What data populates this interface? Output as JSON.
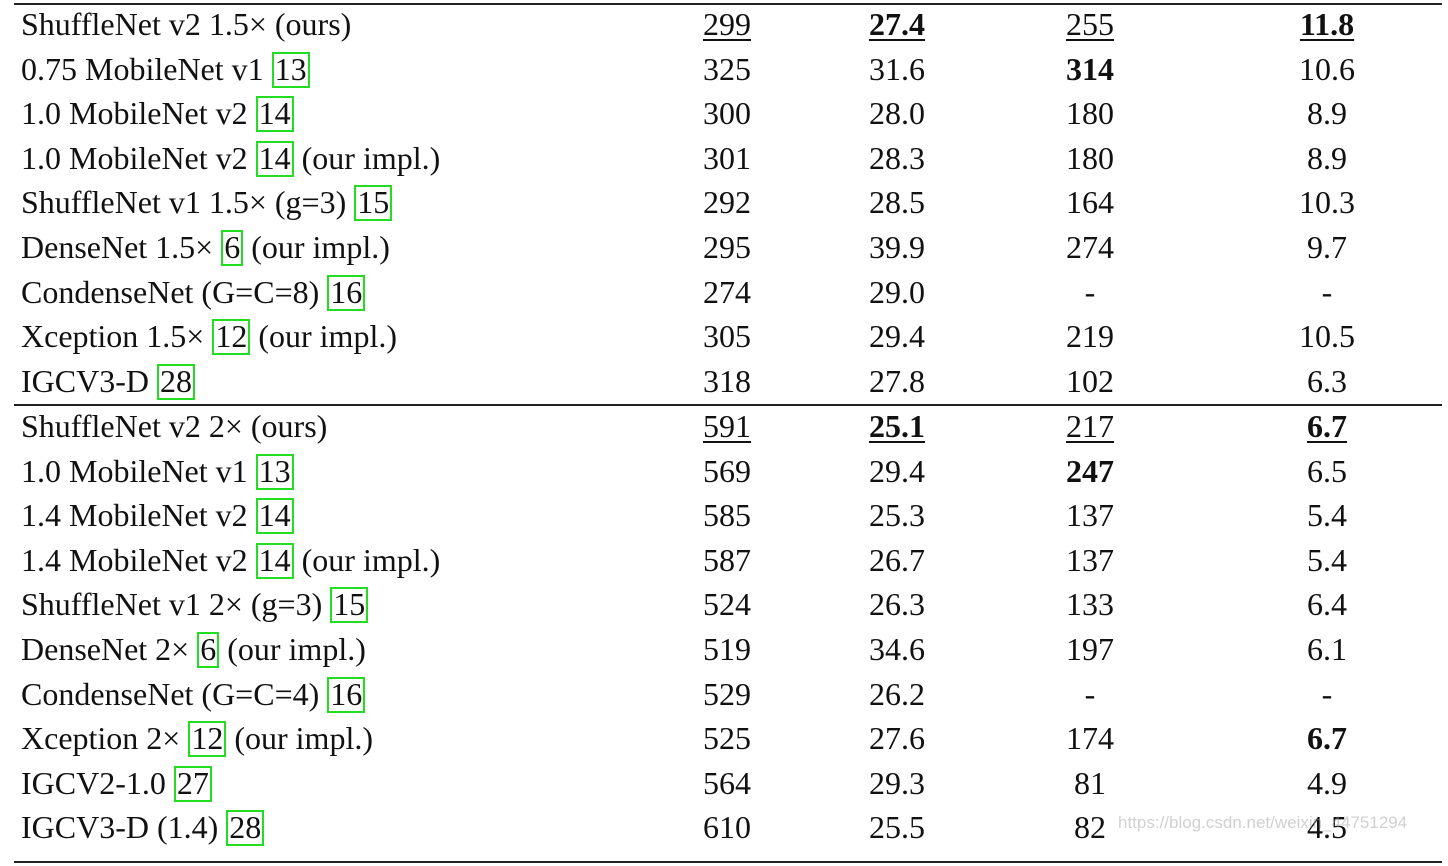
{
  "table": {
    "groups": [
      {
        "rows": [
          {
            "prefix": "ShuffleNet v2 1.5× (ours)",
            "cite": "",
            "suffix": "",
            "cells": [
              {
                "v": "299",
                "u": true
              },
              {
                "v": "27.4",
                "b": true,
                "u": true
              },
              {
                "v": "255",
                "u": true
              },
              {
                "v": "11.8",
                "b": true,
                "u": true
              }
            ]
          },
          {
            "prefix": "0.75 MobileNet v1 ",
            "cite": "13",
            "suffix": "",
            "cells": [
              {
                "v": "325"
              },
              {
                "v": "31.6"
              },
              {
                "v": "314",
                "b": true
              },
              {
                "v": "10.6"
              }
            ]
          },
          {
            "prefix": "1.0 MobileNet v2 ",
            "cite": "14",
            "suffix": "",
            "cells": [
              {
                "v": "300"
              },
              {
                "v": "28.0"
              },
              {
                "v": "180"
              },
              {
                "v": "8.9"
              }
            ]
          },
          {
            "prefix": "1.0 MobileNet v2 ",
            "cite": "14",
            "suffix": " (our impl.)",
            "cells": [
              {
                "v": "301"
              },
              {
                "v": "28.3"
              },
              {
                "v": "180"
              },
              {
                "v": "8.9"
              }
            ]
          },
          {
            "prefix": "ShuffleNet v1 1.5× (g=3) ",
            "cite": "15",
            "suffix": "",
            "cells": [
              {
                "v": "292"
              },
              {
                "v": "28.5"
              },
              {
                "v": "164"
              },
              {
                "v": "10.3"
              }
            ]
          },
          {
            "prefix": "DenseNet 1.5× ",
            "cite": "6",
            "suffix": " (our impl.)",
            "cells": [
              {
                "v": "295"
              },
              {
                "v": "39.9"
              },
              {
                "v": "274"
              },
              {
                "v": "9.7"
              }
            ]
          },
          {
            "prefix": "CondenseNet (G=C=8) ",
            "cite": "16",
            "suffix": "",
            "cells": [
              {
                "v": "274"
              },
              {
                "v": "29.0"
              },
              {
                "v": "-"
              },
              {
                "v": "-"
              }
            ]
          },
          {
            "prefix": "Xception 1.5× ",
            "cite": "12",
            "suffix": " (our impl.)",
            "cells": [
              {
                "v": "305"
              },
              {
                "v": "29.4"
              },
              {
                "v": "219"
              },
              {
                "v": "10.5"
              }
            ]
          },
          {
            "prefix": "IGCV3-D ",
            "cite": "28",
            "suffix": "",
            "cells": [
              {
                "v": "318"
              },
              {
                "v": "27.8"
              },
              {
                "v": "102"
              },
              {
                "v": "6.3"
              }
            ]
          }
        ]
      },
      {
        "rows": [
          {
            "prefix": "ShuffleNet v2 2× (ours)",
            "cite": "",
            "suffix": "",
            "cells": [
              {
                "v": "591",
                "u": true
              },
              {
                "v": "25.1",
                "b": true,
                "u": true
              },
              {
                "v": "217",
                "u": true
              },
              {
                "v": "6.7",
                "b": true,
                "u": true
              }
            ]
          },
          {
            "prefix": "1.0 MobileNet v1 ",
            "cite": "13",
            "suffix": "",
            "cells": [
              {
                "v": "569"
              },
              {
                "v": "29.4"
              },
              {
                "v": "247",
                "b": true
              },
              {
                "v": "6.5"
              }
            ]
          },
          {
            "prefix": "1.4 MobileNet v2 ",
            "cite": "14",
            "suffix": "",
            "cells": [
              {
                "v": "585"
              },
              {
                "v": "25.3"
              },
              {
                "v": "137"
              },
              {
                "v": "5.4"
              }
            ]
          },
          {
            "prefix": "1.4 MobileNet v2 ",
            "cite": "14",
            "suffix": " (our impl.)",
            "cells": [
              {
                "v": "587"
              },
              {
                "v": "26.7"
              },
              {
                "v": "137"
              },
              {
                "v": "5.4"
              }
            ]
          },
          {
            "prefix": "ShuffleNet v1 2× (g=3) ",
            "cite": "15",
            "suffix": "",
            "cells": [
              {
                "v": "524"
              },
              {
                "v": "26.3"
              },
              {
                "v": "133"
              },
              {
                "v": "6.4"
              }
            ]
          },
          {
            "prefix": "DenseNet 2× ",
            "cite": "6",
            "suffix": " (our impl.)",
            "cells": [
              {
                "v": "519"
              },
              {
                "v": "34.6"
              },
              {
                "v": "197"
              },
              {
                "v": "6.1"
              }
            ]
          },
          {
            "prefix": "CondenseNet (G=C=4) ",
            "cite": "16",
            "suffix": "",
            "cells": [
              {
                "v": "529"
              },
              {
                "v": "26.2"
              },
              {
                "v": "-"
              },
              {
                "v": "-"
              }
            ]
          },
          {
            "prefix": "Xception 2× ",
            "cite": "12",
            "suffix": " (our impl.)",
            "cells": [
              {
                "v": "525"
              },
              {
                "v": "27.6"
              },
              {
                "v": "174"
              },
              {
                "v": "6.7",
                "b": true
              }
            ]
          },
          {
            "prefix": "IGCV2-1.0 ",
            "cite": "27",
            "suffix": "",
            "cells": [
              {
                "v": "564"
              },
              {
                "v": "29.3"
              },
              {
                "v": "81"
              },
              {
                "v": "4.9"
              }
            ]
          },
          {
            "prefix": "IGCV3-D (1.4) ",
            "cite": "28",
            "suffix": "",
            "cells": [
              {
                "v": "610"
              },
              {
                "v": "25.5"
              },
              {
                "v": "82"
              },
              {
                "v": "4.5"
              }
            ]
          }
        ]
      }
    ],
    "citation_box_color": "#22dd22"
  },
  "watermark": "https://blog.csdn.net/weixin_44751294"
}
